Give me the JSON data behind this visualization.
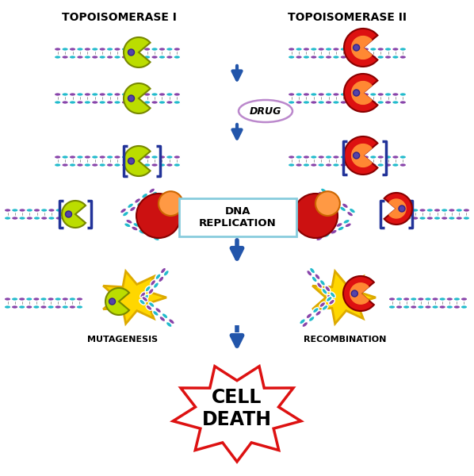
{
  "title_left": "TOPOISOMERASE I",
  "title_right": "TOPOISOMERASE II",
  "label_drug": "DRUG",
  "label_dna_rep": "DNA\nREPLICATION",
  "label_mutagenesis": "MUTAGENESIS",
  "label_recombination": "RECOMBINATION",
  "label_cell_death": "CELL\nDEATH",
  "bg_color": "#ffffff",
  "arrow_color": "#2255aa",
  "dna_purple": "#8844AA",
  "dna_cyan": "#22BBCC",
  "enzyme1_color": "#BBDD00",
  "enzyme1_outline": "#778800",
  "enzyme2_color": "#DD1111",
  "enzyme2_inner": "#FF8833",
  "enzyme2_outline": "#880000",
  "drug_oval_color": "#BB88CC",
  "brackets_color": "#223399",
  "cell_death_border": "#DD1111",
  "explosion_color": "#FFD700",
  "explosion_outline": "#DDAA00",
  "replication_box_color": "#88CCDD",
  "small_blue": "#4466BB"
}
